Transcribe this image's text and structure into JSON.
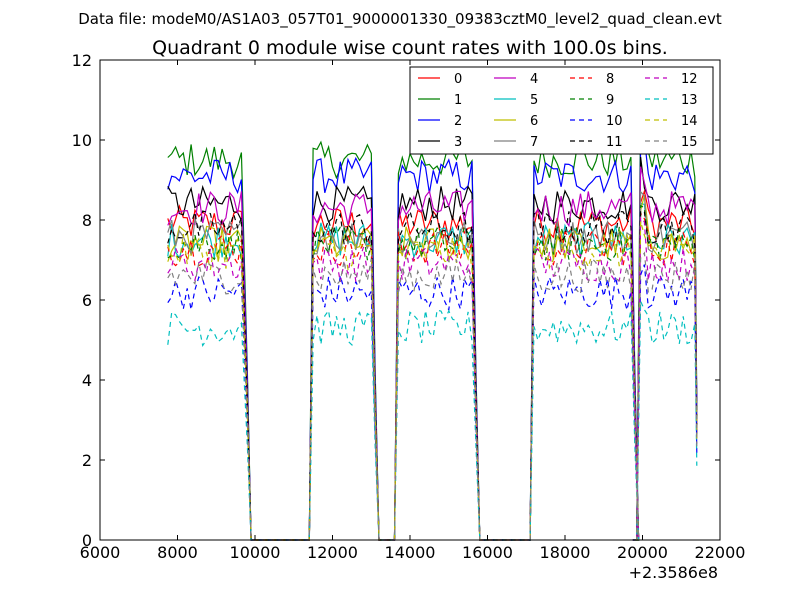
{
  "suptitle": "Data file: modeM0/AS1A03_057T01_9000001330_09383cztM0_level2_quad_clean.evt",
  "chart_data": {
    "type": "line",
    "title": "Quadrant 0 module wise count rates with 100.0s bins.",
    "xlabel": "",
    "ylabel": "",
    "xlim": [
      6000,
      22000
    ],
    "ylim": [
      0,
      12
    ],
    "x_ticks": [
      6000,
      8000,
      10000,
      12000,
      14000,
      16000,
      18000,
      20000,
      22000
    ],
    "y_ticks": [
      0,
      2,
      4,
      6,
      8,
      10,
      12
    ],
    "x_offset_label": "+2.3586e8",
    "legend_position": "top-right",
    "gap_ranges": [
      [
        9900,
        11300
      ],
      [
        13100,
        13600
      ],
      [
        15700,
        17100
      ],
      [
        19700,
        19900
      ]
    ],
    "segments": [
      [
        7750,
        9700
      ],
      [
        11500,
        13000
      ],
      [
        13700,
        15600
      ],
      [
        17200,
        19700
      ],
      [
        19950,
        21400
      ]
    ],
    "series": [
      {
        "name": "0",
        "color": "#ff0000",
        "dashed": false,
        "level": 7.9
      },
      {
        "name": "1",
        "color": "#008000",
        "dashed": false,
        "level": 9.5
      },
      {
        "name": "2",
        "color": "#0000ff",
        "dashed": false,
        "level": 9.1
      },
      {
        "name": "3",
        "color": "#000000",
        "dashed": false,
        "level": 8.4
      },
      {
        "name": "4",
        "color": "#bf00bf",
        "dashed": false,
        "level": 8.3
      },
      {
        "name": "5",
        "color": "#00bfbf",
        "dashed": false,
        "level": 7.5
      },
      {
        "name": "6",
        "color": "#bfbf00",
        "dashed": false,
        "level": 7.4
      },
      {
        "name": "7",
        "color": "#808080",
        "dashed": false,
        "level": 7.6
      },
      {
        "name": "8",
        "color": "#ff0000",
        "dashed": true,
        "level": 7.3
      },
      {
        "name": "9",
        "color": "#008000",
        "dashed": true,
        "level": 7.4
      },
      {
        "name": "10",
        "color": "#0000ff",
        "dashed": true,
        "level": 6.2
      },
      {
        "name": "11",
        "color": "#000000",
        "dashed": true,
        "level": 7.8
      },
      {
        "name": "12",
        "color": "#bf00bf",
        "dashed": true,
        "level": 6.9
      },
      {
        "name": "13",
        "color": "#00bfbf",
        "dashed": true,
        "level": 5.3
      },
      {
        "name": "14",
        "color": "#bfbf00",
        "dashed": true,
        "level": 7.2
      },
      {
        "name": "15",
        "color": "#808080",
        "dashed": true,
        "level": 6.6
      }
    ]
  }
}
